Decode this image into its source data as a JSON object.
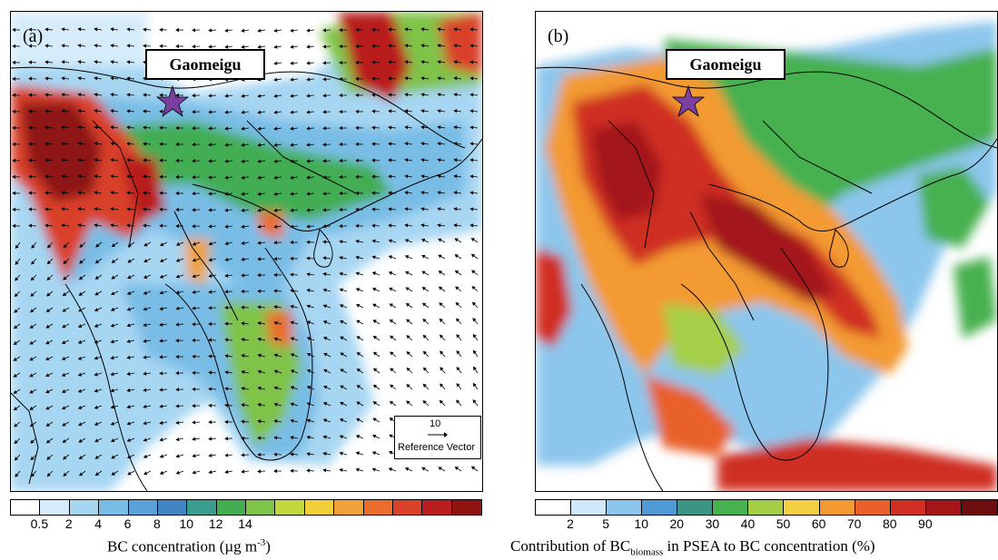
{
  "panels": [
    {
      "id": "a",
      "label": "(a)",
      "site_label": "Gaomeigu",
      "reference_vector": {
        "value": "10",
        "label": "Reference Vector"
      },
      "colorbar": {
        "colors": [
          "#ffffff",
          "#d6ecfb",
          "#a7d6f3",
          "#79bde6",
          "#5aa1d8",
          "#4185c4",
          "#3a9c8c",
          "#43ad52",
          "#7fc34a",
          "#c3d63f",
          "#f2cf3c",
          "#f0a23a",
          "#ea6d2e",
          "#d9412a",
          "#b91d1f",
          "#8e1414"
        ],
        "tick_labels": [
          "0.5",
          "2",
          "4",
          "6",
          "8",
          "10",
          "12",
          "14"
        ],
        "title_prefix": "BC concentration (µg m",
        "title_sup": "-3",
        "title_suffix": ")"
      }
    },
    {
      "id": "b",
      "label": "(b)",
      "site_label": "Gaomeigu",
      "colorbar": {
        "colors": [
          "#ffffff",
          "#cfe8fb",
          "#8cc6ec",
          "#4f9ad6",
          "#3a9584",
          "#47b04f",
          "#a5ce48",
          "#f3cf44",
          "#f39a33",
          "#e8602b",
          "#cf2f24",
          "#a3151a",
          "#6e0d10"
        ],
        "tick_labels": [
          "2",
          "5",
          "10",
          "20",
          "30",
          "40",
          "50",
          "60",
          "70",
          "80",
          "90"
        ],
        "title_prefix": "Contribution of BC",
        "title_sub": "biomass",
        "title_suffix": " in PSEA to BC concentration (%)"
      }
    }
  ]
}
